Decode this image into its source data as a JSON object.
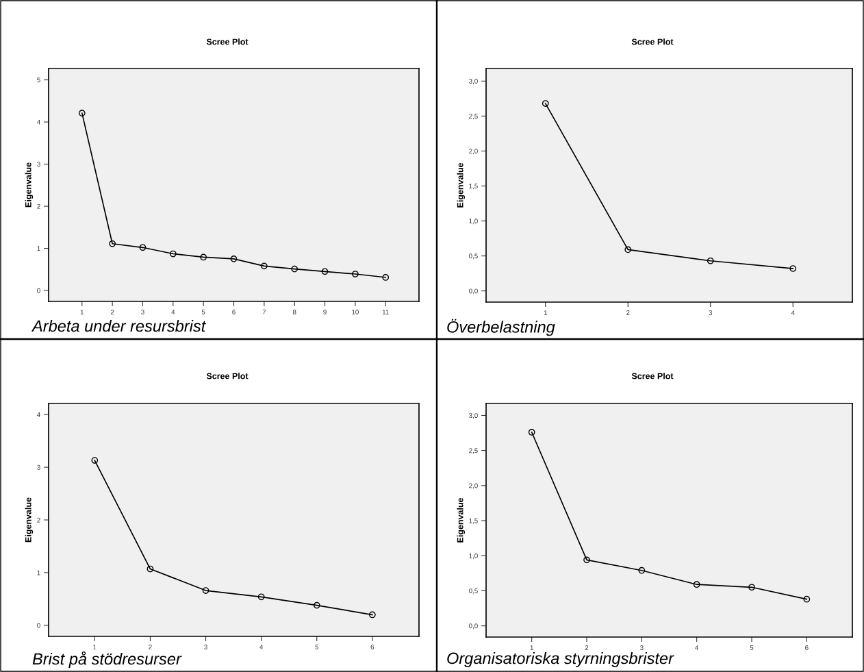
{
  "chart_data": [
    {
      "type": "line",
      "title": "Scree Plot",
      "ylabel": "Eigenvalue",
      "x": [
        1,
        2,
        3,
        4,
        5,
        6,
        7,
        8,
        9,
        10,
        11
      ],
      "series": [
        {
          "color": "#000000",
          "values": [
            4.21,
            1.11,
            1.02,
            0.87,
            0.79,
            0.75,
            0.58,
            0.51,
            0.45,
            0.39,
            0.31
          ]
        }
      ],
      "xlim": [
        -0.1,
        12.1
      ],
      "xticks": [
        1,
        2,
        3,
        4,
        5,
        6,
        7,
        8,
        9,
        10,
        11
      ],
      "ylim": [
        -0.26,
        5.27
      ],
      "yticks": [
        0,
        1,
        2,
        3,
        4,
        5
      ],
      "marker": "circle",
      "grid": false,
      "annotations": [
        "Arbeta under resursbrist"
      ]
    },
    {
      "type": "line",
      "title": "Scree Plot",
      "ylabel": "Eigenvalue",
      "x": [
        1,
        2,
        3,
        4
      ],
      "series": [
        {
          "color": "#000000",
          "values": [
            2.68,
            0.59,
            0.43,
            0.32
          ]
        }
      ],
      "xlim": [
        0.28,
        4.72
      ],
      "xticks": [
        1,
        2,
        3,
        4
      ],
      "ylim": [
        -0.16,
        3.18
      ],
      "yticks": [
        {
          "value": 0,
          "label": "0,0"
        },
        {
          "value": 0.5,
          "label": "0,5"
        },
        {
          "value": 1,
          "label": "1,0"
        },
        {
          "value": 1.5,
          "label": "1,5"
        },
        {
          "value": 2,
          "label": "2,0"
        },
        {
          "value": 2.5,
          "label": "2,5"
        },
        {
          "value": 3,
          "label": "3,0"
        }
      ],
      "marker": "circle",
      "grid": false,
      "annotations": [
        "Överbelastning"
      ]
    },
    {
      "type": "line",
      "title": "Scree Plot",
      "ylabel": "Eigenvalue",
      "x": [
        1,
        2,
        3,
        4,
        5,
        6
      ],
      "series": [
        {
          "color": "#000000",
          "values": [
            3.13,
            1.07,
            0.66,
            0.54,
            0.38,
            0.2
          ]
        }
      ],
      "xlim": [
        0.17,
        6.84
      ],
      "xticks": [
        1,
        2,
        3,
        4,
        5,
        6
      ],
      "ylim": [
        -0.21,
        4.21
      ],
      "yticks": [
        0,
        1,
        2,
        3,
        4
      ],
      "marker": "circle",
      "grid": false,
      "annotations": [
        "Brist på stödresurser"
      ]
    },
    {
      "type": "line",
      "title": "Scree Plot",
      "ylabel": "Eigenvalue",
      "x": [
        1,
        2,
        3,
        4,
        5,
        6
      ],
      "series": [
        {
          "color": "#000000",
          "values": [
            2.76,
            0.94,
            0.79,
            0.59,
            0.55,
            0.38
          ]
        }
      ],
      "xlim": [
        0.17,
        6.83
      ],
      "xticks": [
        1,
        2,
        3,
        4,
        5,
        6
      ],
      "ylim": [
        -0.16,
        3.17
      ],
      "yticks": [
        {
          "value": 0,
          "label": "0,0"
        },
        {
          "value": 0.5,
          "label": "0,5"
        },
        {
          "value": 1,
          "label": "1,0"
        },
        {
          "value": 1.5,
          "label": "1,5"
        },
        {
          "value": 2,
          "label": "2,0"
        },
        {
          "value": 2.5,
          "label": "2,5"
        },
        {
          "value": 3,
          "label": "3,0"
        }
      ],
      "marker": "circle",
      "grid": false,
      "annotations": [
        "Organisatoriska styrningsbrister"
      ]
    }
  ]
}
